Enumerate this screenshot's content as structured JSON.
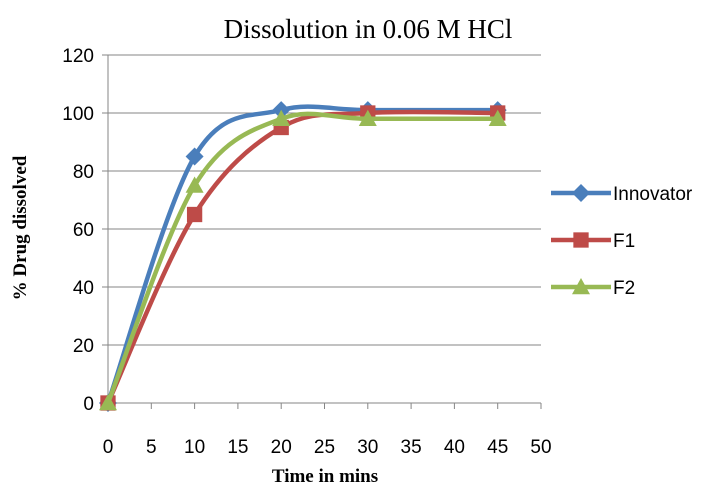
{
  "chart_data": {
    "type": "line",
    "title": "Dissolution in 0.06 M HCl",
    "xlabel": "Time in mins",
    "ylabel": "% Drug dissolved",
    "xlim": [
      0,
      50
    ],
    "ylim": [
      0,
      120
    ],
    "xticks": [
      0,
      5,
      10,
      15,
      20,
      25,
      30,
      35,
      40,
      45,
      50
    ],
    "yticks": [
      0,
      20,
      40,
      60,
      80,
      100,
      120
    ],
    "grid": "horizontal",
    "legend_position": "right",
    "x": [
      0,
      10,
      20,
      30,
      45
    ],
    "series": [
      {
        "name": "Innovator",
        "color": "#4a7ebb",
        "marker": "diamond",
        "values": [
          0,
          85,
          101,
          101,
          101
        ]
      },
      {
        "name": "F1",
        "color": "#be4b48",
        "marker": "square",
        "values": [
          0,
          65,
          95,
          100,
          100
        ]
      },
      {
        "name": "F2",
        "color": "#98b954",
        "marker": "triangle",
        "values": [
          0,
          75,
          98,
          98,
          98
        ]
      }
    ]
  }
}
